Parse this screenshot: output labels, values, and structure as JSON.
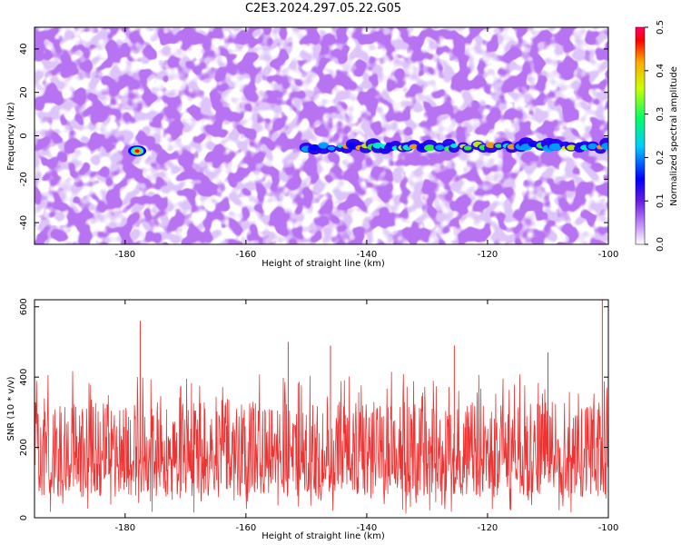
{
  "title": "C2E3.2024.297.05.22.G05",
  "colors": {
    "snr_line": "#ee3333",
    "heatmap_low": "#ffffff",
    "heatmap_mid": "#7a2be2",
    "heatmap_high": "#ff0000"
  },
  "chart_data": [
    {
      "type": "heatmap",
      "name": "spectrogram",
      "x_label": "Height of straight line (km)",
      "y_label": "Frequency (Hz)",
      "xlim": [
        -195,
        -100
      ],
      "ylim": [
        -50,
        50
      ],
      "x_ticks": [
        -180,
        -160,
        -140,
        -120,
        -100
      ],
      "y_ticks": [
        -40,
        -20,
        0,
        20,
        40
      ],
      "value_range": [
        0.0,
        0.5
      ],
      "features": [
        {
          "description_label": "signal band",
          "x_range": [
            -150,
            -100
          ],
          "y": -5,
          "amplitude": 0.25
        },
        {
          "description_label": "hot spot",
          "x": -178,
          "y": -7,
          "amplitude": 0.5
        }
      ],
      "colorbar": {
        "label": "Normalized spectral amplitude",
        "ticks": [
          "0.0",
          "0.1",
          "0.2",
          "0.3",
          "0.4",
          "0.5"
        ]
      }
    },
    {
      "type": "line",
      "name": "snr",
      "x_label": "Height of straight line (km)",
      "y_label": "SNR (10 * v/v)",
      "xlim": [
        -195,
        -100
      ],
      "ylim": [
        0,
        620
      ],
      "x_ticks": [
        -180,
        -160,
        -140,
        -120,
        -100
      ],
      "y_ticks": [
        0,
        200,
        400,
        600
      ],
      "baseline": 160,
      "noise_low": 60,
      "noise_high": 330,
      "peaks": [
        {
          "x": -177.5,
          "y": 560
        },
        {
          "x": -153,
          "y": 500
        },
        {
          "x": -146,
          "y": 490
        },
        {
          "x": -125.5,
          "y": 490
        },
        {
          "x": -110,
          "y": 470
        },
        {
          "x": -101,
          "y": 620
        }
      ]
    }
  ]
}
